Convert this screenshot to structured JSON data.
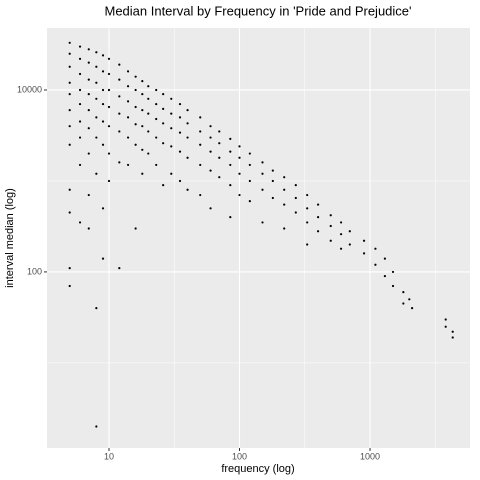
{
  "chart_data": {
    "type": "scatter",
    "title": "Median Interval by Frequency in 'Pride and Prejudice'",
    "xlabel": "frequency (log)",
    "ylabel": "interval median (log)",
    "xlog": true,
    "ylog": true,
    "grid": true,
    "color": "#000000",
    "xlim": [
      3.35,
      5834
    ],
    "ylim": [
      1.16,
      48000
    ],
    "xticks": [
      10,
      100,
      1000
    ],
    "yticks": [
      100,
      10000
    ],
    "x": [
      5,
      5,
      5,
      5,
      5,
      5,
      5,
      5,
      5,
      5,
      5,
      5,
      6,
      6,
      6,
      6,
      6,
      6,
      6,
      6,
      6,
      7,
      7,
      7,
      7,
      7,
      7,
      7,
      7,
      7,
      8,
      8,
      8,
      8,
      8,
      8,
      8,
      8,
      8,
      9,
      9,
      9,
      9,
      9,
      9,
      9,
      9,
      10,
      10,
      10,
      10,
      10,
      10,
      10,
      12,
      12,
      12,
      12,
      12,
      12,
      12,
      14,
      14,
      14,
      14,
      14,
      14,
      16,
      16,
      16,
      16,
      16,
      16,
      18,
      18,
      18,
      18,
      18,
      18,
      20,
      20,
      20,
      20,
      20,
      23,
      23,
      23,
      23,
      23,
      26,
      26,
      26,
      26,
      26,
      30,
      30,
      30,
      30,
      30,
      35,
      35,
      35,
      35,
      35,
      40,
      40,
      40,
      40,
      40,
      50,
      50,
      50,
      50,
      50,
      60,
      60,
      60,
      60,
      60,
      70,
      70,
      70,
      70,
      85,
      85,
      85,
      85,
      85,
      100,
      100,
      100,
      100,
      120,
      120,
      120,
      120,
      150,
      150,
      150,
      150,
      180,
      180,
      180,
      220,
      220,
      220,
      220,
      270,
      270,
      270,
      330,
      330,
      330,
      330,
      400,
      400,
      400,
      500,
      500,
      500,
      600,
      600,
      600,
      700,
      700,
      900,
      900,
      1100,
      1100,
      1300,
      1300,
      1500,
      1500,
      1800,
      1800,
      2000,
      2100,
      3800,
      3800,
      4300,
      4300
    ],
    "values": [
      33000,
      25000,
      18000,
      12000,
      9000,
      6000,
      4000,
      2500,
      800,
      450,
      110,
      70,
      30000,
      22000,
      15000,
      10000,
      7000,
      4500,
      3000,
      1500,
      350,
      28000,
      20000,
      13000,
      9000,
      6000,
      3800,
      2000,
      700,
      300,
      26000,
      18000,
      12000,
      8000,
      5000,
      3000,
      1200,
      40,
      2,
      24000,
      16000,
      10000,
      7000,
      4500,
      2500,
      500,
      140,
      22000,
      15000,
      10000,
      6500,
      4000,
      2000,
      1000,
      19000,
      13000,
      8500,
      5500,
      3500,
      1600,
      110,
      16000,
      11000,
      7500,
      5000,
      3000,
      1500,
      14000,
      10000,
      6500,
      4200,
      2500,
      300,
      12500,
      9000,
      6000,
      4000,
      2200,
      1200,
      11000,
      8000,
      5500,
      3500,
      2000,
      10000,
      7000,
      4800,
      3000,
      1500,
      9000,
      6200,
      4300,
      2600,
      900,
      8000,
      5500,
      3800,
      2400,
      1200,
      7000,
      5000,
      3400,
      2100,
      1000,
      6000,
      4300,
      3000,
      1800,
      800,
      5000,
      3500,
      2500,
      1500,
      700,
      4000,
      3000,
      2100,
      1300,
      500,
      3500,
      2600,
      1800,
      1100,
      2900,
      2100,
      1500,
      900,
      400,
      2400,
      1800,
      1200,
      700,
      2000,
      1500,
      1000,
      600,
      1600,
      1200,
      800,
      350,
      1300,
      1000,
      650,
      1100,
      800,
      550,
      300,
      900,
      650,
      450,
      700,
      500,
      350,
      200,
      550,
      400,
      280,
      420,
      320,
      220,
      350,
      260,
      180,
      280,
      200,
      220,
      160,
      180,
      120,
      140,
      90,
      100,
      70,
      60,
      45,
      50,
      40,
      30,
      25,
      22,
      19
    ]
  }
}
